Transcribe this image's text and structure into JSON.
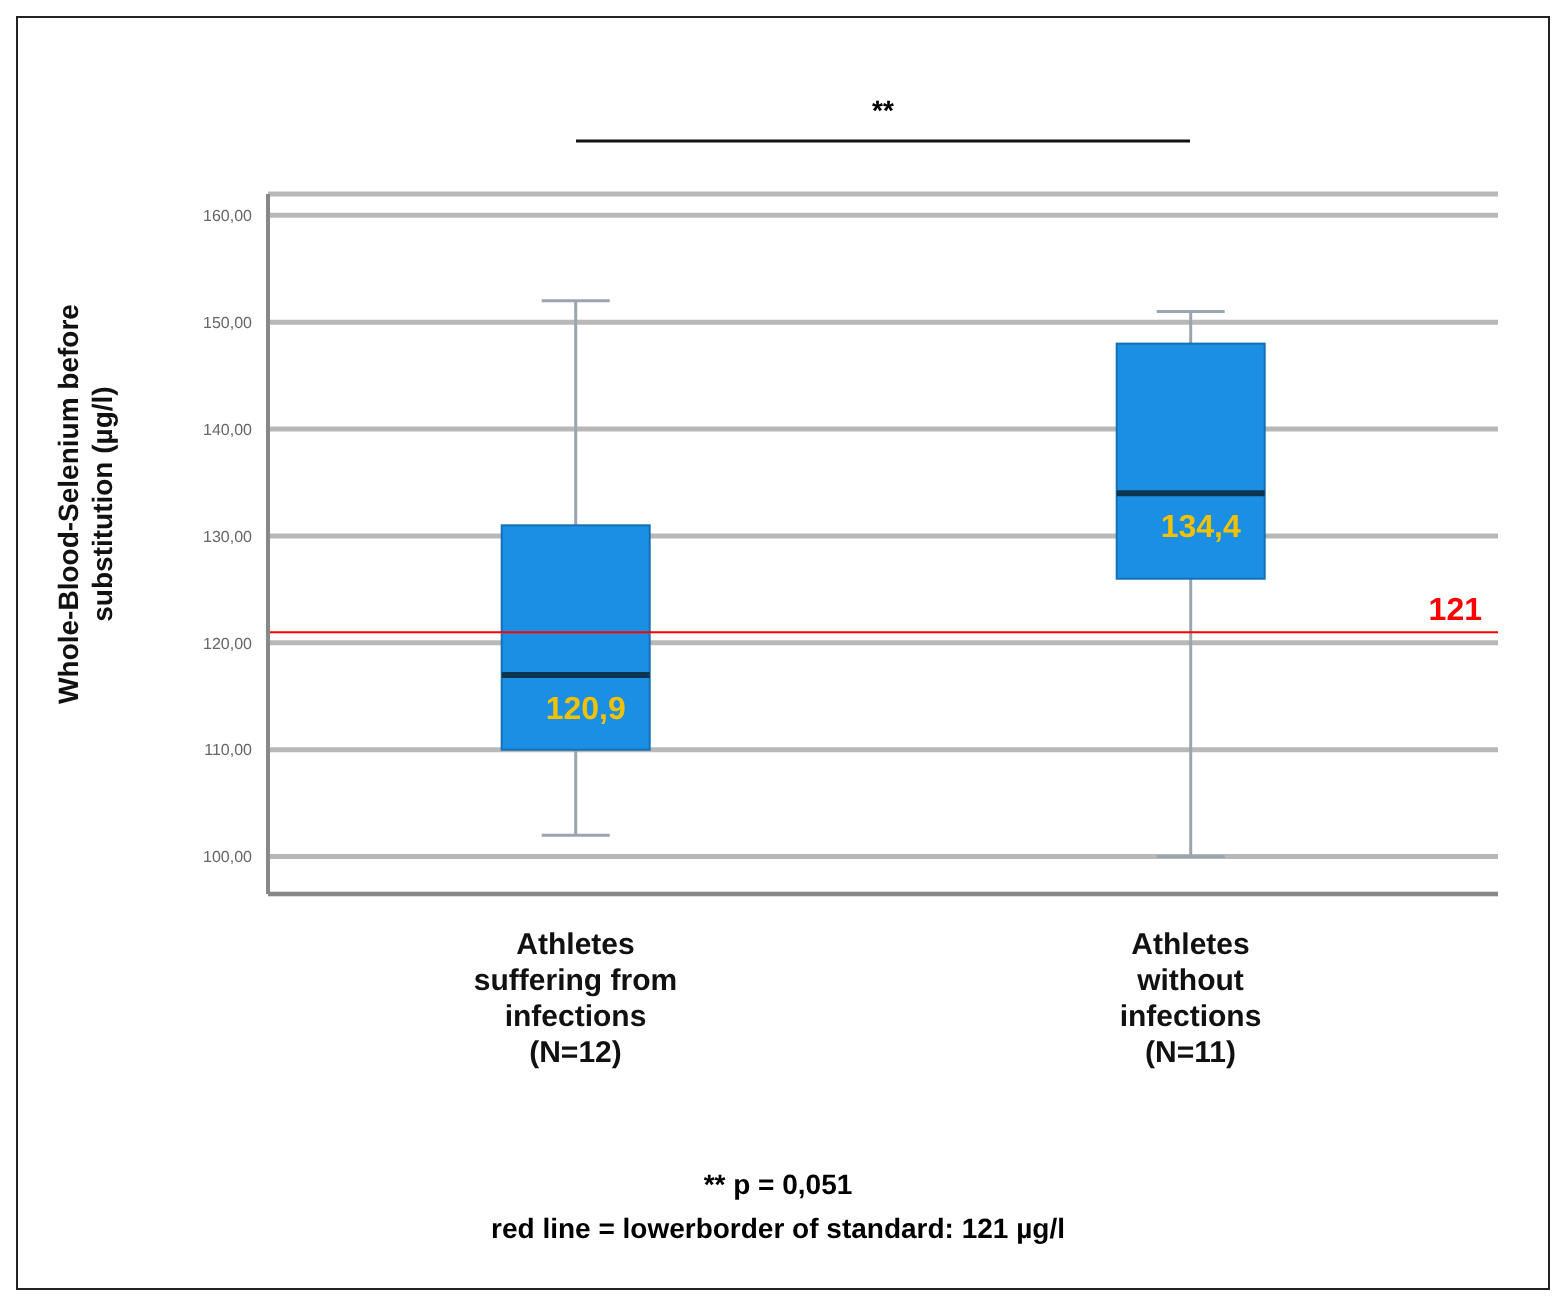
{
  "chart_data": {
    "type": "box",
    "ylabel": "Whole-Blood-Selenium before substitution (µg/l)",
    "categories": [
      "Athletes suffering from infections (N=12)",
      "Athletes without infections (N=11)"
    ],
    "boxes": [
      {
        "low": 102,
        "q1": 110,
        "median": 117,
        "q3": 131,
        "high": 152
      },
      {
        "low": 100,
        "q1": 126,
        "median": 134,
        "q3": 148,
        "high": 151
      }
    ],
    "value_labels": [
      "120,9",
      "134,4"
    ],
    "color": "#1a8fe3",
    "ylim": [
      96.5,
      162
    ],
    "yticks": [
      {
        "value": 100,
        "label": "100,00"
      },
      {
        "value": 110,
        "label": "110,00"
      },
      {
        "value": 120,
        "label": "120,00"
      },
      {
        "value": 130,
        "label": "130,00"
      },
      {
        "value": 140,
        "label": "140,00"
      },
      {
        "value": 150,
        "label": "150,00"
      },
      {
        "value": 160,
        "label": "160,00"
      }
    ],
    "grid": "y",
    "ref_lines": [
      {
        "axis": "y",
        "value": 121,
        "label": "121",
        "color": "#ff0000"
      }
    ],
    "annotations": [
      "**",
      "** p = 0,051",
      "red line = lowerborder of standard: 121 µg/l"
    ]
  }
}
